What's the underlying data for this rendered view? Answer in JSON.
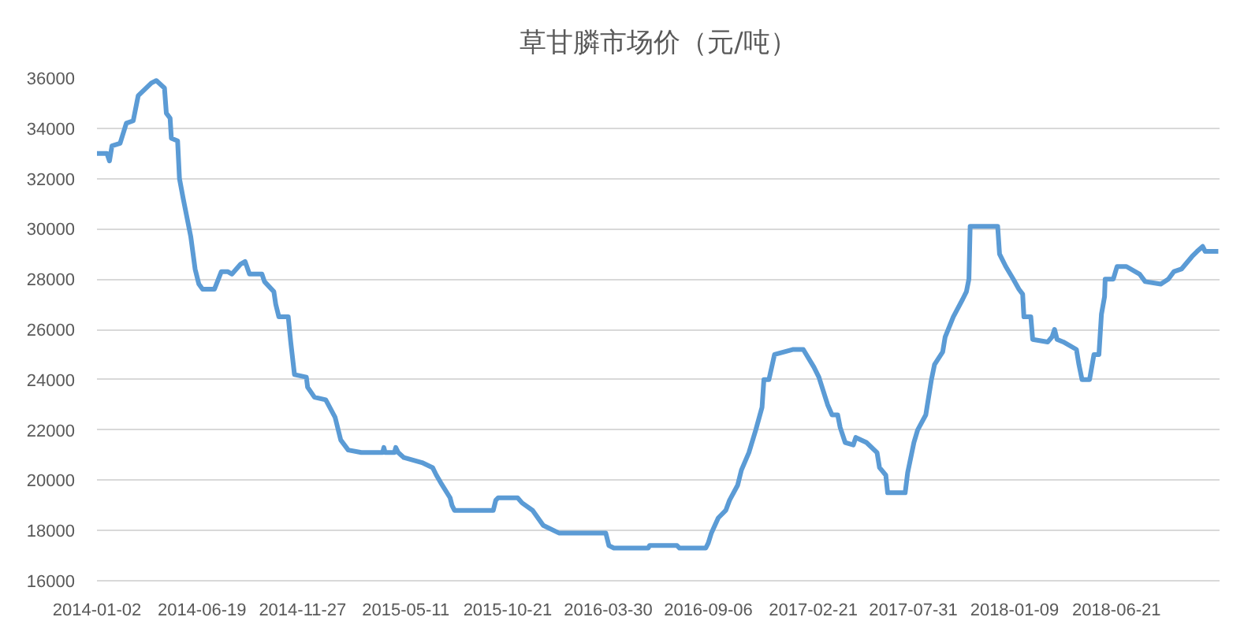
{
  "chart_data": {
    "type": "line",
    "title": "草甘膦市场价（元/吨）",
    "color": "#5b9bd5",
    "grid": "y",
    "xlim": [
      "2014-01-02",
      "2018-12-03"
    ],
    "ylim": [
      16000,
      36000
    ],
    "xticks": [
      "2014-01-02",
      "2014-06-19",
      "2014-11-27",
      "2015-05-11",
      "2015-10-21",
      "2016-03-30",
      "2016-09-06",
      "2017-02-21",
      "2017-07-31",
      "2018-01-09",
      "2018-06-21"
    ],
    "yticks": [
      16000,
      18000,
      20000,
      22000,
      24000,
      26000,
      28000,
      30000,
      32000,
      34000,
      36000
    ],
    "x": [
      "2014-01-02",
      "2014-01-18",
      "2014-01-22",
      "2014-01-26",
      "2014-02-08",
      "2014-02-18",
      "2014-03-01",
      "2014-03-09",
      "2014-03-30",
      "2014-04-07",
      "2014-04-20",
      "2014-04-23",
      "2014-04-29",
      "2014-05-01",
      "2014-05-11",
      "2014-05-14",
      "2014-05-20",
      "2014-06-01",
      "2014-06-08",
      "2014-06-14",
      "2014-06-20",
      "2014-07-09",
      "2014-07-20",
      "2014-07-30",
      "2014-08-06",
      "2014-08-20",
      "2014-08-27",
      "2014-09-03",
      "2014-09-23",
      "2014-09-27",
      "2014-10-12",
      "2014-10-15",
      "2014-10-20",
      "2014-11-04",
      "2014-11-08",
      "2014-11-14",
      "2014-12-03",
      "2014-12-05",
      "2014-12-16",
      "2015-01-03",
      "2015-01-18",
      "2015-01-27",
      "2015-02-08",
      "2015-03-01",
      "2015-04-04",
      "2015-04-06",
      "2015-04-08",
      "2015-04-23",
      "2015-04-25",
      "2015-04-29",
      "2015-05-08",
      "2015-06-06",
      "2015-06-23",
      "2015-06-29",
      "2015-07-06",
      "2015-07-21",
      "2015-07-24",
      "2015-07-28",
      "2015-09-28",
      "2015-10-02",
      "2015-10-06",
      "2015-11-06",
      "2015-11-13",
      "2015-11-30",
      "2015-12-17",
      "2016-01-11",
      "2016-03-26",
      "2016-03-31",
      "2016-04-08",
      "2016-06-02",
      "2016-06-04",
      "2016-07-18",
      "2016-07-22",
      "2016-09-02",
      "2016-09-06",
      "2016-09-11",
      "2016-09-22",
      "2016-10-04",
      "2016-10-10",
      "2016-10-23",
      "2016-10-29",
      "2016-11-10",
      "2016-11-21",
      "2016-12-01",
      "2016-12-04",
      "2016-12-12",
      "2016-12-21",
      "2017-01-19",
      "2017-02-05",
      "2017-02-22",
      "2017-03-02",
      "2017-03-16",
      "2017-03-23",
      "2017-04-01",
      "2017-04-05",
      "2017-04-13",
      "2017-04-26",
      "2017-04-30",
      "2017-05-17",
      "2017-06-03",
      "2017-06-07",
      "2017-06-17",
      "2017-06-20",
      "2017-07-18",
      "2017-07-22",
      "2017-08-01",
      "2017-08-07",
      "2017-08-20",
      "2017-08-29",
      "2017-09-03",
      "2017-09-16",
      "2017-09-20",
      "2017-10-03",
      "2017-10-18",
      "2017-10-24",
      "2017-10-28",
      "2017-10-30",
      "2017-12-13",
      "2017-12-16",
      "2017-12-26",
      "2018-01-07",
      "2018-01-16",
      "2018-01-22",
      "2018-01-24",
      "2018-02-04",
      "2018-02-07",
      "2018-03-03",
      "2018-03-10",
      "2018-03-14",
      "2018-03-18",
      "2018-03-28",
      "2018-04-18",
      "2018-04-22",
      "2018-04-27",
      "2018-05-09",
      "2018-05-16",
      "2018-05-24",
      "2018-05-28",
      "2018-06-02",
      "2018-06-03",
      "2018-06-16",
      "2018-06-22",
      "2018-07-07",
      "2018-07-28",
      "2018-08-06",
      "2018-08-31",
      "2018-09-12",
      "2018-09-21",
      "2018-10-03",
      "2018-10-20",
      "2018-10-28",
      "2018-11-06",
      "2018-11-10",
      "2018-12-01"
    ],
    "values": [
      33000,
      33000,
      32700,
      33300,
      33400,
      34200,
      34300,
      35300,
      35800,
      35900,
      35600,
      34600,
      34400,
      33600,
      33500,
      32000,
      31200,
      29700,
      28400,
      27800,
      27600,
      27600,
      28300,
      28300,
      28200,
      28600,
      28700,
      28200,
      28200,
      27900,
      27500,
      27000,
      26500,
      26500,
      25500,
      24200,
      24100,
      23700,
      23300,
      23200,
      22500,
      21600,
      21200,
      21100,
      21100,
      21300,
      21100,
      21100,
      21300,
      21100,
      20900,
      20700,
      20500,
      20200,
      19900,
      19300,
      19000,
      18800,
      18800,
      19200,
      19300,
      19300,
      19100,
      18800,
      18200,
      17900,
      17900,
      17400,
      17300,
      17300,
      17400,
      17400,
      17300,
      17300,
      17500,
      17900,
      18500,
      18800,
      19200,
      19800,
      20400,
      21100,
      22000,
      22900,
      24000,
      24000,
      25000,
      25200,
      25200,
      24500,
      24100,
      23000,
      22600,
      22600,
      22100,
      21500,
      21400,
      21700,
      21500,
      21100,
      20500,
      20200,
      19500,
      19500,
      20300,
      21500,
      22000,
      22600,
      24000,
      24600,
      25100,
      25700,
      26500,
      27200,
      27500,
      28000,
      30100,
      30100,
      29000,
      28500,
      28000,
      27600,
      27400,
      26500,
      26500,
      25600,
      25500,
      25700,
      26000,
      25600,
      25500,
      25200,
      24600,
      24000,
      24000,
      25000,
      25000,
      26600,
      27300,
      28000,
      28000,
      28500,
      28500,
      28200,
      27900,
      27800,
      28000,
      28300,
      28400,
      28900,
      29100,
      29300,
      29100,
      29100
    ]
  }
}
